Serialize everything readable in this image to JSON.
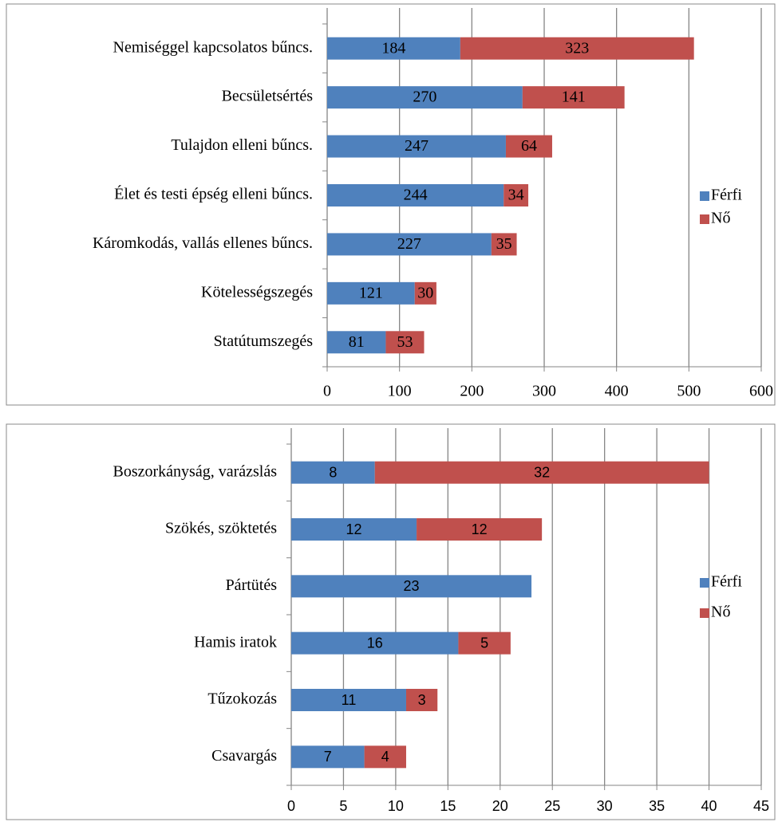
{
  "chart_data": [
    {
      "type": "bar",
      "orientation": "horizontal",
      "stacked": true,
      "legend": "right",
      "grid": true,
      "categories": [
        "Nemiséggel kapcsolatos bűncs.",
        "Becsületsértés",
        "Tulajdon elleni bűncs.",
        "Élet és testi épség elleni bűncs.",
        "Káromkodás, vallás ellenes bűncs.",
        "Kötelességszegés",
        "Statútumszegés"
      ],
      "series": [
        {
          "name": "Férfi",
          "color": "#4f81bd",
          "values": [
            184,
            270,
            247,
            244,
            227,
            121,
            81
          ]
        },
        {
          "name": "Nő",
          "color": "#c0504d",
          "values": [
            323,
            141,
            64,
            34,
            35,
            30,
            53
          ]
        }
      ],
      "xlim": [
        0,
        600
      ],
      "xticks": [
        0,
        100,
        200,
        300,
        400,
        500,
        600
      ]
    },
    {
      "type": "bar",
      "orientation": "horizontal",
      "stacked": true,
      "legend": "right",
      "grid": true,
      "categories": [
        "Boszorkányság, varázslás",
        "Szökés, szöktetés",
        "Pártütés",
        "Hamis iratok",
        "Tűzokozás",
        "Csavargás"
      ],
      "series": [
        {
          "name": "Férfi",
          "color": "#4f81bd",
          "values": [
            8,
            12,
            23,
            16,
            11,
            7
          ]
        },
        {
          "name": "Nő",
          "color": "#c0504d",
          "values": [
            32,
            12,
            null,
            5,
            3,
            4
          ]
        }
      ],
      "xlim": [
        0,
        45
      ],
      "xticks": [
        0,
        5,
        10,
        15,
        20,
        25,
        30,
        35,
        40,
        45
      ]
    }
  ]
}
